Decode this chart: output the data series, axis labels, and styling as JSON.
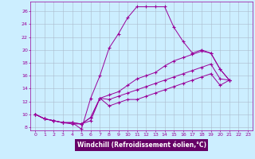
{
  "xlabel": "Windchill (Refroidissement éolien,°C)",
  "ylabel": "",
  "bg_color": "#cceeff",
  "xlabel_bg": "#660066",
  "xlabel_fg": "#ffffff",
  "grid_color": "#aabbcc",
  "line_color": "#990099",
  "marker": "+",
  "xlim": [
    -0.5,
    23.5
  ],
  "ylim": [
    7.5,
    27.5
  ],
  "yticks": [
    8,
    10,
    12,
    14,
    16,
    18,
    20,
    22,
    24,
    26
  ],
  "xticks": [
    0,
    1,
    2,
    3,
    4,
    5,
    6,
    7,
    8,
    9,
    10,
    11,
    12,
    13,
    14,
    15,
    16,
    17,
    18,
    19,
    20,
    21,
    22,
    23
  ],
  "series1_x": [
    0,
    1,
    2,
    3,
    4,
    5,
    6,
    7,
    8,
    9,
    10,
    11,
    12,
    13,
    14,
    15,
    16,
    17,
    18,
    19,
    20,
    21
  ],
  "series1_y": [
    10.0,
    9.3,
    9.0,
    8.7,
    8.7,
    7.7,
    12.5,
    16.0,
    20.3,
    22.5,
    25.0,
    26.7,
    26.7,
    26.7,
    26.7,
    23.5,
    21.3,
    19.5,
    20.0,
    19.5,
    17.0,
    15.3
  ],
  "series2_x": [
    0,
    1,
    2,
    3,
    4,
    5,
    6,
    7,
    8,
    9,
    10,
    11,
    12,
    13,
    14,
    15,
    16,
    17,
    18,
    19,
    20,
    21
  ],
  "series2_y": [
    10.0,
    9.3,
    9.0,
    8.7,
    8.7,
    8.5,
    9.5,
    12.5,
    13.0,
    13.5,
    14.5,
    15.5,
    16.0,
    16.5,
    17.5,
    18.3,
    18.8,
    19.3,
    19.8,
    19.5,
    17.0,
    15.3
  ],
  "series3_x": [
    0,
    1,
    2,
    3,
    4,
    5,
    6,
    7,
    8,
    9,
    10,
    11,
    12,
    13,
    14,
    15,
    16,
    17,
    18,
    19,
    20,
    21
  ],
  "series3_y": [
    10.0,
    9.3,
    9.0,
    8.7,
    8.7,
    8.5,
    9.5,
    12.5,
    12.3,
    12.8,
    13.3,
    13.8,
    14.3,
    14.8,
    15.3,
    15.8,
    16.3,
    16.8,
    17.3,
    17.8,
    15.5,
    15.3
  ],
  "series4_x": [
    0,
    1,
    2,
    3,
    4,
    5,
    6,
    7,
    8,
    9,
    10,
    11,
    12,
    13,
    14,
    15,
    16,
    17,
    18,
    19,
    20,
    21
  ],
  "series4_y": [
    10.0,
    9.3,
    9.0,
    8.7,
    8.5,
    8.5,
    9.0,
    12.5,
    11.3,
    11.8,
    12.3,
    12.3,
    12.8,
    13.3,
    13.8,
    14.3,
    14.8,
    15.3,
    15.8,
    16.3,
    14.5,
    15.3
  ]
}
